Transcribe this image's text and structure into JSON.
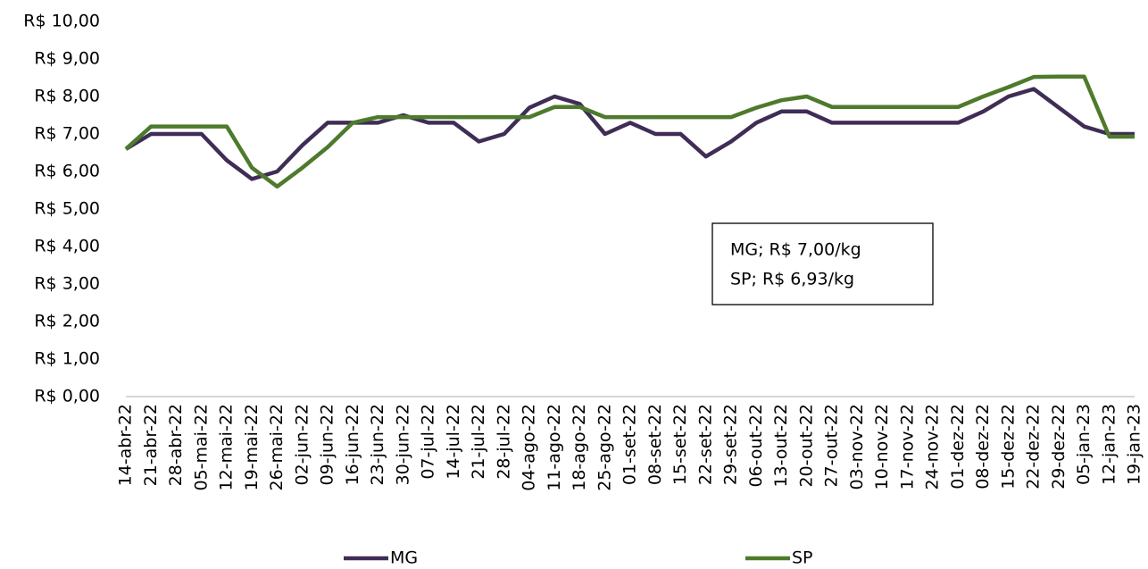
{
  "chart_data": {
    "type": "line",
    "categories": [
      "14-abr-22",
      "21-abr-22",
      "28-abr-22",
      "05-mai-22",
      "12-mai-22",
      "19-mai-22",
      "26-mai-22",
      "02-jun-22",
      "09-jun-22",
      "16-jun-22",
      "23-jun-22",
      "30-jun-22",
      "07-jul-22",
      "14-jul-22",
      "21-jul-22",
      "28-jul-22",
      "04-ago-22",
      "11-ago-22",
      "18-ago-22",
      "25-ago-22",
      "01-set-22",
      "08-set-22",
      "15-set-22",
      "22-set-22",
      "29-set-22",
      "06-out-22",
      "13-out-22",
      "20-out-22",
      "27-out-22",
      "03-nov-22",
      "10-nov-22",
      "17-nov-22",
      "24-nov-22",
      "01-dez-22",
      "08-dez-22",
      "15-dez-22",
      "22-dez-22",
      "29-dez-22",
      "05-jan-23",
      "12-jan-23",
      "19-jan-23"
    ],
    "series": [
      {
        "name": "MG",
        "color": "#3f2d56",
        "values": [
          6.6,
          7.0,
          7.0,
          7.0,
          6.3,
          5.8,
          6.0,
          6.7,
          7.3,
          7.3,
          7.3,
          7.5,
          7.3,
          7.3,
          6.8,
          7.0,
          7.7,
          8.0,
          7.8,
          7.0,
          7.3,
          7.0,
          7.0,
          6.4,
          6.8,
          7.3,
          7.6,
          7.6,
          7.3,
          7.3,
          7.3,
          7.3,
          7.3,
          7.3,
          7.6,
          8.0,
          8.2,
          7.7,
          7.2,
          7.0,
          7.0
        ]
      },
      {
        "name": "SP",
        "color": "#4e7a2c",
        "values": [
          6.6,
          7.2,
          7.2,
          7.2,
          7.2,
          6.1,
          5.6,
          6.1,
          6.65,
          7.3,
          7.45,
          7.45,
          7.45,
          7.45,
          7.45,
          7.45,
          7.45,
          7.72,
          7.72,
          7.45,
          7.45,
          7.45,
          7.45,
          7.45,
          7.45,
          7.7,
          7.9,
          8.0,
          7.72,
          7.72,
          7.72,
          7.72,
          7.72,
          7.72,
          8.0,
          8.25,
          8.52,
          8.53,
          8.53,
          6.93,
          6.93
        ]
      }
    ],
    "ylim": [
      0,
      10
    ],
    "yticks": [
      {
        "value": 0,
        "label": "R$ 0,00"
      },
      {
        "value": 1,
        "label": "R$ 1,00"
      },
      {
        "value": 2,
        "label": "R$ 2,00"
      },
      {
        "value": 3,
        "label": "R$ 3,00"
      },
      {
        "value": 4,
        "label": "R$ 4,00"
      },
      {
        "value": 5,
        "label": "R$ 5,00"
      },
      {
        "value": 6,
        "label": "R$ 6,00"
      },
      {
        "value": 7,
        "label": "R$ 7,00"
      },
      {
        "value": 8,
        "label": "R$ 8,00"
      },
      {
        "value": 9,
        "label": "R$ 9,00"
      },
      {
        "value": 10,
        "label": "R$ 10,00"
      }
    ],
    "grid": false,
    "legend": "bottom",
    "annotations": [
      "MG; R$ 7,00/kg",
      "SP; R$ 6,93/kg"
    ]
  }
}
